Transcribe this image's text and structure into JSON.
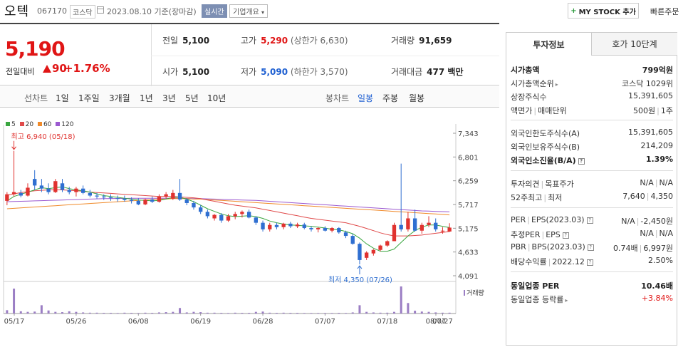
{
  "header": {
    "stock_name": "오텍",
    "stock_code": "067170",
    "market": "코스닥",
    "date_text": "2023.08.10 기준(장마감)",
    "realtime_label": "실시간",
    "company_label": "기업개요",
    "mystock_label": "MY STOCK 추가",
    "quick_order_label": "빠른주문"
  },
  "price": {
    "current": "5,190",
    "change_label": "전일대비",
    "change": "90",
    "change_pct": "+1.76%",
    "prev_close_label": "전일",
    "prev_close": "5,100",
    "high_label": "고가",
    "high": "5,290",
    "upper_limit": "(상한가 6,630)",
    "volume_label": "거래량",
    "volume": "91,659",
    "open_label": "시가",
    "open": "5,100",
    "low_label": "저가",
    "low": "5,090",
    "lower_limit": "(하한가 3,570)",
    "amount_label": "거래대금",
    "amount": "477 백만"
  },
  "period_bar": {
    "line_chart": "선차트",
    "periods": [
      "1일",
      "1주일",
      "3개월",
      "1년",
      "3년",
      "5년",
      "10년"
    ],
    "candle_chart": "봉차트",
    "candle_periods": [
      "일봉",
      "주봉",
      "월봉"
    ],
    "selected": "일봉"
  },
  "chart_data": {
    "type": "candlestick",
    "title": "",
    "legend": [
      "5",
      "20",
      "60",
      "120"
    ],
    "legend_colors": [
      "#3aa640",
      "#e04a4a",
      "#f08a2a",
      "#9b59d0"
    ],
    "y_ticks": [
      "7,343",
      "6,801",
      "6,259",
      "5,717",
      "5,175",
      "4,633",
      "4,091"
    ],
    "ylim": [
      4091,
      7343
    ],
    "x_ticks": [
      "05/17",
      "05/26",
      "06/08",
      "06/19",
      "06/28",
      "07/07",
      "07/18",
      "07/27",
      "08/07"
    ],
    "high_annotation": "최고 6,940 (05/18)",
    "low_annotation": "최저 4,350 (07/26)",
    "volume_label": "거래량",
    "candles": [
      {
        "o": 5800,
        "h": 6000,
        "l": 5700,
        "c": 5950
      },
      {
        "o": 5950,
        "h": 6940,
        "l": 5900,
        "c": 6000
      },
      {
        "o": 5980,
        "h": 6050,
        "l": 5880,
        "c": 5920
      },
      {
        "o": 5920,
        "h": 6200,
        "l": 5900,
        "c": 6100
      },
      {
        "o": 6300,
        "h": 6500,
        "l": 6050,
        "c": 6150
      },
      {
        "o": 6150,
        "h": 6300,
        "l": 6000,
        "c": 6080
      },
      {
        "o": 6080,
        "h": 6200,
        "l": 5950,
        "c": 6000
      },
      {
        "o": 6000,
        "h": 6300,
        "l": 5980,
        "c": 6250
      },
      {
        "o": 6200,
        "h": 6300,
        "l": 6000,
        "c": 6050
      },
      {
        "o": 6050,
        "h": 6120,
        "l": 5950,
        "c": 6000
      },
      {
        "o": 6000,
        "h": 6120,
        "l": 5900,
        "c": 6080
      },
      {
        "o": 6080,
        "h": 6150,
        "l": 5950,
        "c": 5980
      },
      {
        "o": 5980,
        "h": 6050,
        "l": 5880,
        "c": 5920
      },
      {
        "o": 5920,
        "h": 5980,
        "l": 5850,
        "c": 5900
      },
      {
        "o": 5900,
        "h": 5950,
        "l": 5820,
        "c": 5880
      },
      {
        "o": 5880,
        "h": 5950,
        "l": 5800,
        "c": 5860
      },
      {
        "o": 5860,
        "h": 5920,
        "l": 5780,
        "c": 5850
      },
      {
        "o": 5850,
        "h": 5920,
        "l": 5780,
        "c": 5820
      },
      {
        "o": 5820,
        "h": 5880,
        "l": 5740,
        "c": 5800
      },
      {
        "o": 5800,
        "h": 5860,
        "l": 5700,
        "c": 5720
      },
      {
        "o": 5720,
        "h": 5850,
        "l": 5700,
        "c": 5830
      },
      {
        "o": 5830,
        "h": 5900,
        "l": 5750,
        "c": 5780
      },
      {
        "o": 5780,
        "h": 5950,
        "l": 5760,
        "c": 5900
      },
      {
        "o": 5900,
        "h": 6000,
        "l": 5850,
        "c": 5950
      },
      {
        "o": 5850,
        "h": 6050,
        "l": 5820,
        "c": 5980
      },
      {
        "o": 5980,
        "h": 6300,
        "l": 5800,
        "c": 5830
      },
      {
        "o": 5830,
        "h": 5860,
        "l": 5700,
        "c": 5750
      },
      {
        "o": 5750,
        "h": 5800,
        "l": 5600,
        "c": 5650
      },
      {
        "o": 5650,
        "h": 5700,
        "l": 5500,
        "c": 5550
      },
      {
        "o": 5550,
        "h": 5600,
        "l": 5400,
        "c": 5450
      },
      {
        "o": 5400,
        "h": 5500,
        "l": 5350,
        "c": 5480
      },
      {
        "o": 5480,
        "h": 5520,
        "l": 5300,
        "c": 5350
      },
      {
        "o": 5350,
        "h": 5500,
        "l": 5320,
        "c": 5450
      },
      {
        "o": 5450,
        "h": 5550,
        "l": 5380,
        "c": 5500
      },
      {
        "o": 5500,
        "h": 5580,
        "l": 5420,
        "c": 5550
      },
      {
        "o": 5550,
        "h": 5600,
        "l": 5400,
        "c": 5420
      },
      {
        "o": 5420,
        "h": 5450,
        "l": 5250,
        "c": 5300
      },
      {
        "o": 5300,
        "h": 5350,
        "l": 5100,
        "c": 5150
      },
      {
        "o": 5150,
        "h": 5300,
        "l": 5100,
        "c": 5250
      },
      {
        "o": 5250,
        "h": 5300,
        "l": 5150,
        "c": 5200
      },
      {
        "o": 5200,
        "h": 5300,
        "l": 5150,
        "c": 5280
      },
      {
        "o": 5280,
        "h": 5320,
        "l": 5180,
        "c": 5220
      },
      {
        "o": 5220,
        "h": 5300,
        "l": 5180,
        "c": 5260
      },
      {
        "o": 5260,
        "h": 5300,
        "l": 5150,
        "c": 5180
      },
      {
        "o": 5180,
        "h": 5220,
        "l": 5100,
        "c": 5150
      },
      {
        "o": 5150,
        "h": 5200,
        "l": 5080,
        "c": 5180
      },
      {
        "o": 5180,
        "h": 5220,
        "l": 5100,
        "c": 5120
      },
      {
        "o": 5120,
        "h": 5200,
        "l": 5080,
        "c": 5180
      },
      {
        "o": 5180,
        "h": 5200,
        "l": 5050,
        "c": 5080
      },
      {
        "o": 5080,
        "h": 5120,
        "l": 4950,
        "c": 5000
      },
      {
        "o": 5000,
        "h": 5050,
        "l": 4800,
        "c": 4820
      },
      {
        "o": 4820,
        "h": 4850,
        "l": 4350,
        "c": 4450
      },
      {
        "o": 4500,
        "h": 4650,
        "l": 4450,
        "c": 4620
      },
      {
        "o": 4600,
        "h": 4700,
        "l": 4550,
        "c": 4680
      },
      {
        "o": 4680,
        "h": 4800,
        "l": 4650,
        "c": 4780
      },
      {
        "o": 4780,
        "h": 4900,
        "l": 4750,
        "c": 4880
      },
      {
        "o": 4880,
        "h": 5300,
        "l": 4880,
        "c": 5250
      },
      {
        "o": 5250,
        "h": 6650,
        "l": 5100,
        "c": 5150
      },
      {
        "o": 5150,
        "h": 5550,
        "l": 5100,
        "c": 5400
      },
      {
        "o": 5400,
        "h": 5600,
        "l": 5100,
        "c": 5120
      },
      {
        "o": 5120,
        "h": 5300,
        "l": 5050,
        "c": 5250
      },
      {
        "o": 5250,
        "h": 5450,
        "l": 5200,
        "c": 5300
      },
      {
        "o": 5300,
        "h": 5400,
        "l": 5100,
        "c": 5150
      },
      {
        "o": 5100,
        "h": 5200,
        "l": 5050,
        "c": 5120
      },
      {
        "o": 5100,
        "h": 5290,
        "l": 5090,
        "c": 5190
      }
    ],
    "ma": {
      "5": [
        5800,
        5900,
        5950,
        6000,
        6050,
        6100,
        6080,
        6100,
        6120,
        6080,
        6050,
        6030,
        6000,
        5960,
        5920,
        5900,
        5880,
        5860,
        5840,
        5820,
        5810,
        5800,
        5810,
        5840,
        5880,
        5880,
        5840,
        5780,
        5700,
        5620,
        5560,
        5500,
        5460,
        5440,
        5450,
        5460,
        5440,
        5400,
        5340,
        5300,
        5270,
        5250,
        5240,
        5230,
        5220,
        5200,
        5180,
        5150,
        5140,
        5100,
        5050,
        4950,
        4820,
        4720,
        4650,
        4650,
        4700,
        4850,
        5000,
        5120,
        5200,
        5250,
        5250,
        5220,
        5190
      ],
      "20": [
        5930,
        5960,
        5990,
        6010,
        6030,
        6040,
        6050,
        6050,
        6050,
        6040,
        6030,
        6020,
        6000,
        5990,
        5980,
        5970,
        5960,
        5950,
        5940,
        5930,
        5920,
        5910,
        5900,
        5900,
        5900,
        5890,
        5880,
        5870,
        5850,
        5820,
        5790,
        5760,
        5730,
        5700,
        5680,
        5660,
        5640,
        5610,
        5580,
        5550,
        5520,
        5490,
        5460,
        5430,
        5400,
        5380,
        5360,
        5340,
        5320,
        5300,
        5260,
        5220,
        5170,
        5120,
        5070,
        5030,
        5000,
        5000,
        5000,
        5010,
        5020,
        5040,
        5060,
        5080,
        5100
      ],
      "60": [
        5620,
        5630,
        5640,
        5650,
        5660,
        5670,
        5680,
        5690,
        5700,
        5710,
        5720,
        5730,
        5740,
        5750,
        5760,
        5770,
        5780,
        5790,
        5800,
        5810,
        5820,
        5830,
        5840,
        5840,
        5850,
        5850,
        5850,
        5840,
        5840,
        5830,
        5820,
        5810,
        5800,
        5790,
        5780,
        5770,
        5760,
        5750,
        5740,
        5730,
        5720,
        5710,
        5700,
        5690,
        5680,
        5670,
        5660,
        5650,
        5640,
        5630,
        5620,
        5610,
        5600,
        5590,
        5580,
        5570,
        5560,
        5550,
        5540,
        5530,
        5520,
        5510,
        5500,
        5490,
        5480
      ],
      "120": [
        5780,
        5785,
        5790,
        5795,
        5800,
        5805,
        5810,
        5815,
        5820,
        5825,
        5830,
        5835,
        5840,
        5845,
        5850,
        5850,
        5855,
        5855,
        5860,
        5860,
        5860,
        5860,
        5860,
        5860,
        5860,
        5855,
        5855,
        5850,
        5850,
        5845,
        5840,
        5835,
        5830,
        5825,
        5820,
        5815,
        5810,
        5800,
        5790,
        5780,
        5770,
        5760,
        5750,
        5740,
        5730,
        5720,
        5710,
        5700,
        5690,
        5680,
        5670,
        5660,
        5650,
        5640,
        5630,
        5620,
        5610,
        5600,
        5590,
        5580,
        5570,
        5565,
        5560,
        5555,
        5550
      ]
    },
    "volume": [
      120,
      900,
      80,
      60,
      70,
      300,
      110,
      60,
      50,
      80,
      60,
      40,
      30,
      30,
      25,
      25,
      20,
      30,
      25,
      20,
      30,
      25,
      40,
      50,
      60,
      200,
      40,
      60,
      50,
      30,
      30,
      25,
      20,
      30,
      25,
      25,
      60,
      70,
      30,
      25,
      30,
      25,
      25,
      20,
      20,
      20,
      20,
      20,
      25,
      20,
      40,
      300,
      60,
      40,
      30,
      30,
      60,
      980,
      380,
      100,
      70,
      60,
      40,
      30,
      30
    ]
  },
  "side_panel": {
    "tabs": [
      "투자정보",
      "호가 10단계"
    ],
    "rows": {
      "market_cap_label": "시가총액",
      "market_cap": "799억원",
      "cap_rank_label": "시가총액순위",
      "cap_rank": "코스닥 1029위",
      "shares_label": "상장주식수",
      "shares": "15,391,605",
      "par_label": "액면가",
      "unit_label": "매매단위",
      "par": "500원",
      "unit": "1주",
      "foreign_limit_label": "외국인한도주식수(A)",
      "foreign_limit": "15,391,605",
      "foreign_hold_label": "외국인보유주식수(B)",
      "foreign_hold": "214,209",
      "foreign_ratio_label": "외국인소진율(B/A)",
      "foreign_ratio": "1.39%",
      "opinion_label": "투자의견",
      "target_label": "목표주가",
      "opinion": "N/A",
      "target": "N/A",
      "w52_label": "52주최고",
      "w52_low_label": "최저",
      "w52_high": "7,640",
      "w52_low": "4,350",
      "per_label": "PER",
      "eps_label": "EPS(2023.03)",
      "per": "N/A",
      "eps": "-2,450원",
      "est_per_label": "추정PER",
      "est_eps_label": "EPS",
      "est_per": "N/A",
      "est_eps": "N/A",
      "pbr_label": "PBR",
      "bps_label": "BPS(2023.03)",
      "pbr": "0.74배",
      "bps": "6,997원",
      "div_label": "배당수익률",
      "div_date": "2022.12",
      "div": "2.50%",
      "sector_per_label": "동일업종 PER",
      "sector_per": "10.46배",
      "sector_chg_label": "동일업종 등락률",
      "sector_chg": "+3.84%"
    }
  }
}
